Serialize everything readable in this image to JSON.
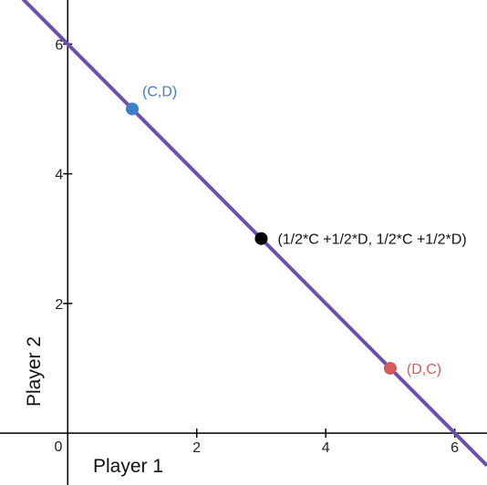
{
  "chart_data": {
    "type": "scatter",
    "xlabel": "Player 1",
    "ylabel": "Player 2",
    "xlim": [
      -1.05,
      6.5
    ],
    "ylim": [
      -0.8,
      6.68
    ],
    "x_ticks": [
      2,
      4,
      6
    ],
    "y_ticks": [
      2,
      4,
      6
    ],
    "origin_label": "0",
    "grid": false,
    "line": {
      "points": [
        [
          -1,
          7
        ],
        [
          6.5,
          -0.5
        ]
      ],
      "color": "#6a4fb0"
    },
    "points": [
      {
        "x": 1,
        "y": 5,
        "label": "(C,D)",
        "color": "#3d7ec6",
        "label_color": "#3d7ec6"
      },
      {
        "x": 3,
        "y": 3,
        "label": "(1/2*C +1/2*D, 1/2*C +1/2*D)",
        "color": "#000000",
        "label_color": "#111111"
      },
      {
        "x": 5,
        "y": 1,
        "label": "(D,C)",
        "color": "#d65a5a",
        "label_color": "#d65a5a"
      }
    ]
  }
}
